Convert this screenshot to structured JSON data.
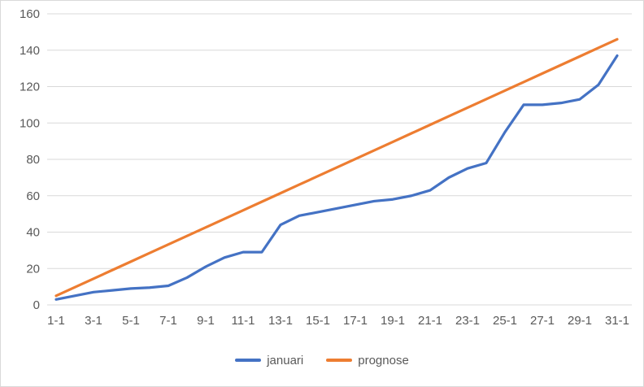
{
  "chart_data": {
    "type": "line",
    "title": "",
    "xlabel": "",
    "ylabel": "",
    "x": [
      "1-1",
      "2-1",
      "3-1",
      "4-1",
      "5-1",
      "6-1",
      "7-1",
      "8-1",
      "9-1",
      "10-1",
      "11-1",
      "12-1",
      "13-1",
      "14-1",
      "15-1",
      "16-1",
      "17-1",
      "18-1",
      "19-1",
      "20-1",
      "21-1",
      "22-1",
      "23-1",
      "24-1",
      "25-1",
      "26-1",
      "27-1",
      "28-1",
      "29-1",
      "30-1",
      "31-1"
    ],
    "xtick_every": 2,
    "ylim": [
      0,
      160
    ],
    "ytick_step": 20,
    "grid": "horizontal",
    "legend_position": "bottom",
    "series": [
      {
        "name": "januari",
        "color": "#4472C4",
        "values": [
          3,
          5,
          7,
          8,
          9,
          9.5,
          10.5,
          15,
          21,
          26,
          29,
          29,
          44,
          49,
          51,
          53,
          55,
          57,
          58,
          60,
          63,
          70,
          75,
          78,
          95,
          110,
          110,
          111,
          113,
          121,
          137
        ]
      },
      {
        "name": "prognose",
        "color": "#ED7D31",
        "values": [
          5,
          9.7,
          14.4,
          19.1,
          23.8,
          28.5,
          33.2,
          37.9,
          42.6,
          47.3,
          52,
          56.7,
          61.4,
          66.1,
          70.8,
          75.5,
          80.2,
          84.9,
          89.6,
          94.3,
          99,
          103.7,
          108.4,
          113.1,
          117.8,
          122.5,
          127.2,
          131.9,
          136.6,
          141.3,
          146
        ]
      }
    ]
  },
  "colors": {
    "grid": "#d9d9d9",
    "axis_text": "#595959",
    "background": "#ffffff"
  }
}
